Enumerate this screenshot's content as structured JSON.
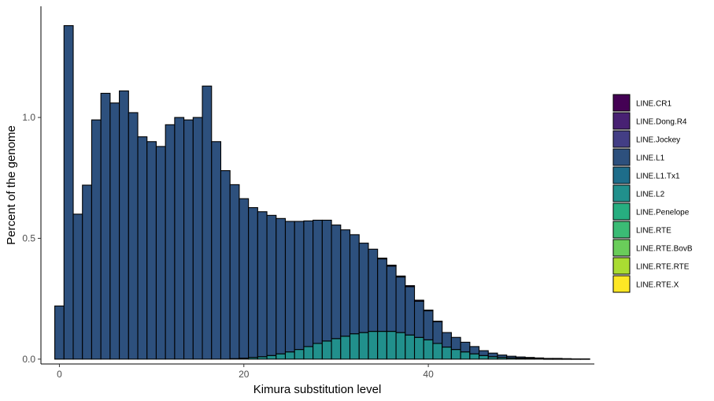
{
  "chart_data": {
    "type": "bar",
    "stacked": true,
    "xlabel": "Kimura substitution level",
    "ylabel": "Percent of the genome",
    "xlim": [
      -2,
      58
    ],
    "ylim": [
      -0.02,
      1.46
    ],
    "x_ticks": [
      0,
      20,
      40
    ],
    "y_ticks": [
      0.0,
      0.5,
      1.0
    ],
    "y_tick_labels": [
      "0.0",
      "0.5",
      "1.0"
    ],
    "grid": false,
    "legend_position": "right",
    "bin_width": 1,
    "x": [
      0,
      1,
      2,
      3,
      4,
      5,
      6,
      7,
      8,
      9,
      10,
      11,
      12,
      13,
      14,
      15,
      16,
      17,
      18,
      19,
      20,
      21,
      22,
      23,
      24,
      25,
      26,
      27,
      28,
      29,
      30,
      31,
      32,
      33,
      34,
      35,
      36,
      37,
      38,
      39,
      40,
      41,
      42,
      43,
      44,
      45,
      46,
      47,
      48,
      49,
      50,
      51,
      52,
      53,
      54,
      55,
      56,
      57
    ],
    "series": [
      {
        "name": "LINE.CR1",
        "color": "#440154",
        "values": [
          0,
          0,
          0,
          0,
          0,
          0,
          0,
          0,
          0,
          0,
          0,
          0,
          0,
          0,
          0,
          0,
          0,
          0,
          0,
          0,
          0,
          0,
          0,
          0,
          0,
          0,
          0,
          0,
          0,
          0,
          0,
          0,
          0,
          0,
          0,
          0.003,
          0.004,
          0.004,
          0.004,
          0.004,
          0.003,
          0.002,
          0,
          0,
          0,
          0,
          0,
          0,
          0,
          0,
          0,
          0,
          0,
          0,
          0,
          0,
          0,
          0
        ]
      },
      {
        "name": "LINE.Dong.R4",
        "color": "#482173",
        "values": [
          0,
          0,
          0,
          0,
          0,
          0,
          0,
          0,
          0,
          0,
          0,
          0,
          0,
          0,
          0,
          0,
          0,
          0,
          0,
          0,
          0,
          0,
          0,
          0,
          0,
          0,
          0,
          0,
          0,
          0,
          0,
          0,
          0,
          0,
          0,
          0,
          0,
          0,
          0,
          0,
          0,
          0,
          0,
          0,
          0,
          0,
          0,
          0,
          0,
          0,
          0,
          0,
          0,
          0,
          0,
          0,
          0,
          0
        ]
      },
      {
        "name": "LINE.Jockey",
        "color": "#433E85",
        "values": [
          0,
          0,
          0,
          0,
          0,
          0,
          0,
          0,
          0,
          0,
          0,
          0,
          0,
          0,
          0,
          0,
          0,
          0,
          0,
          0,
          0,
          0,
          0,
          0,
          0,
          0,
          0,
          0,
          0,
          0,
          0,
          0,
          0,
          0,
          0,
          0,
          0,
          0,
          0,
          0,
          0,
          0,
          0,
          0,
          0,
          0,
          0,
          0,
          0,
          0,
          0,
          0,
          0,
          0,
          0,
          0,
          0,
          0
        ]
      },
      {
        "name": "LINE.L1",
        "color": "#2D507D",
        "values": [
          0.22,
          1.38,
          0.6,
          0.72,
          0.99,
          1.1,
          1.06,
          1.11,
          1.02,
          0.92,
          0.9,
          0.88,
          0.97,
          1.0,
          0.99,
          1.0,
          1.13,
          0.9,
          0.78,
          0.72,
          0.66,
          0.62,
          0.6,
          0.58,
          0.56,
          0.54,
          0.53,
          0.52,
          0.51,
          0.5,
          0.47,
          0.44,
          0.41,
          0.37,
          0.34,
          0.3,
          0.27,
          0.23,
          0.2,
          0.15,
          0.12,
          0.09,
          0.06,
          0.05,
          0.04,
          0.03,
          0.02,
          0.015,
          0.01,
          0.007,
          0.005,
          0.004,
          0.003,
          0.002,
          0.002,
          0.001,
          0.001,
          0.001
        ]
      },
      {
        "name": "LINE.L1.Tx1",
        "color": "#1E6D8A",
        "values": [
          0,
          0,
          0,
          0,
          0,
          0,
          0,
          0,
          0,
          0,
          0,
          0,
          0,
          0,
          0,
          0,
          0,
          0,
          0,
          0,
          0,
          0,
          0,
          0,
          0,
          0,
          0,
          0,
          0,
          0,
          0,
          0,
          0,
          0,
          0,
          0,
          0,
          0,
          0,
          0,
          0,
          0,
          0,
          0,
          0,
          0,
          0,
          0,
          0,
          0,
          0,
          0,
          0,
          0,
          0,
          0,
          0,
          0
        ]
      },
      {
        "name": "LINE.L2",
        "color": "#21908C",
        "values": [
          0,
          0,
          0,
          0,
          0,
          0,
          0,
          0,
          0,
          0,
          0,
          0,
          0,
          0,
          0,
          0,
          0,
          0,
          0,
          0.002,
          0.004,
          0.007,
          0.01,
          0.015,
          0.022,
          0.03,
          0.04,
          0.052,
          0.065,
          0.075,
          0.085,
          0.095,
          0.105,
          0.11,
          0.115,
          0.115,
          0.115,
          0.11,
          0.1,
          0.09,
          0.08,
          0.065,
          0.05,
          0.04,
          0.03,
          0.022,
          0.015,
          0.01,
          0.007,
          0.005,
          0.004,
          0.003,
          0.002,
          0.001,
          0.001,
          0.001,
          0,
          0
        ]
      },
      {
        "name": "LINE.Penelope",
        "color": "#27AE80",
        "values": [
          0,
          0,
          0,
          0,
          0,
          0,
          0,
          0,
          0,
          0,
          0,
          0,
          0,
          0,
          0,
          0,
          0,
          0,
          0,
          0,
          0,
          0,
          0,
          0,
          0,
          0,
          0,
          0,
          0,
          0,
          0,
          0,
          0,
          0,
          0,
          0,
          0,
          0,
          0,
          0,
          0,
          0,
          0,
          0,
          0,
          0,
          0,
          0,
          0,
          0,
          0,
          0,
          0,
          0,
          0,
          0,
          0,
          0
        ]
      },
      {
        "name": "LINE.RTE",
        "color": "#3BBB75",
        "values": [
          0,
          0,
          0,
          0,
          0,
          0,
          0,
          0,
          0,
          0,
          0,
          0,
          0,
          0,
          0,
          0,
          0,
          0,
          0,
          0,
          0,
          0,
          0,
          0,
          0,
          0,
          0,
          0,
          0,
          0,
          0,
          0,
          0,
          0,
          0,
          0,
          0,
          0,
          0,
          0,
          0,
          0,
          0,
          0,
          0,
          0,
          0,
          0,
          0,
          0,
          0,
          0,
          0,
          0,
          0,
          0,
          0,
          0
        ]
      },
      {
        "name": "LINE.RTE.BovB",
        "color": "#6ACD5A",
        "values": [
          0,
          0,
          0,
          0,
          0,
          0,
          0,
          0,
          0,
          0,
          0,
          0,
          0,
          0,
          0,
          0,
          0,
          0,
          0,
          0,
          0,
          0,
          0,
          0,
          0,
          0,
          0,
          0,
          0,
          0,
          0,
          0,
          0,
          0,
          0,
          0,
          0,
          0,
          0,
          0,
          0,
          0,
          0,
          0,
          0,
          0,
          0,
          0,
          0,
          0,
          0,
          0,
          0,
          0,
          0,
          0,
          0,
          0
        ]
      },
      {
        "name": "LINE.RTE.RTE",
        "color": "#AADC32",
        "values": [
          0,
          0,
          0,
          0,
          0,
          0,
          0,
          0,
          0,
          0,
          0,
          0,
          0,
          0,
          0,
          0,
          0,
          0,
          0,
          0,
          0,
          0,
          0,
          0,
          0,
          0,
          0,
          0,
          0,
          0,
          0,
          0,
          0,
          0,
          0,
          0,
          0,
          0,
          0,
          0,
          0,
          0,
          0,
          0,
          0,
          0,
          0,
          0,
          0,
          0,
          0,
          0,
          0,
          0,
          0,
          0,
          0,
          0
        ]
      },
      {
        "name": "LINE.RTE.X",
        "color": "#FDE725",
        "values": [
          0,
          0,
          0,
          0,
          0,
          0,
          0,
          0,
          0,
          0,
          0,
          0,
          0,
          0,
          0,
          0,
          0,
          0,
          0,
          0,
          0,
          0,
          0,
          0,
          0,
          0,
          0,
          0,
          0,
          0,
          0,
          0,
          0,
          0,
          0,
          0,
          0,
          0,
          0,
          0,
          0,
          0,
          0,
          0,
          0,
          0,
          0,
          0,
          0,
          0,
          0,
          0,
          0,
          0,
          0,
          0,
          0,
          0
        ]
      }
    ]
  }
}
